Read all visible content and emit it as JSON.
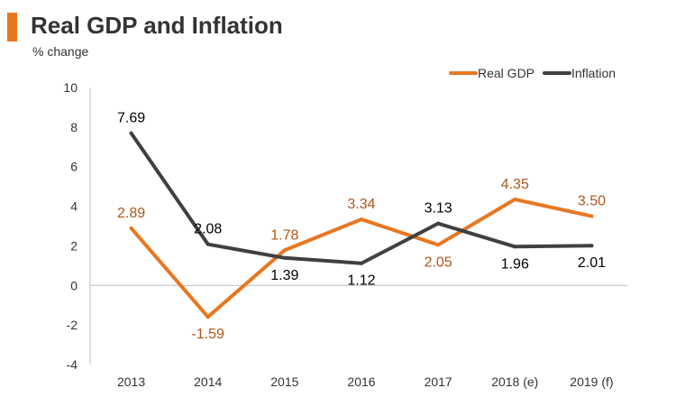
{
  "header": {
    "title": "Real GDP and Inflation",
    "subtitle": "% change"
  },
  "colors": {
    "accent": "#e87722",
    "real_gdp": "#e87722",
    "real_gdp_label": "#b0551a",
    "inflation": "#404040",
    "inflation_label": "#000000",
    "axis": "#bfbfbf"
  },
  "chart_data": {
    "type": "line",
    "title": "Real GDP and Inflation",
    "subtitle": "% change",
    "categories": [
      "2013",
      "2014",
      "2015",
      "2016",
      "2017",
      "2018 (e)",
      "2019 (f)"
    ],
    "series": [
      {
        "name": "Real GDP",
        "values": [
          2.89,
          -1.59,
          1.78,
          3.34,
          2.05,
          4.35,
          3.5
        ],
        "labels": [
          "2.89",
          "-1.59",
          "1.78",
          "3.34",
          "2.05",
          "4.35",
          "3.50"
        ]
      },
      {
        "name": "Inflation",
        "values": [
          7.69,
          2.08,
          1.39,
          1.12,
          3.13,
          1.96,
          2.01
        ],
        "labels": [
          "7.69",
          "2.08",
          "1.39",
          "1.12",
          "3.13",
          "1.96",
          "2.01"
        ]
      }
    ],
    "y_ticks": [
      "10",
      "8",
      "6",
      "4",
      "2",
      "0",
      "-2",
      "-4"
    ],
    "ylim": [
      -4,
      10
    ],
    "legend_position": "top-right",
    "grid": false
  }
}
